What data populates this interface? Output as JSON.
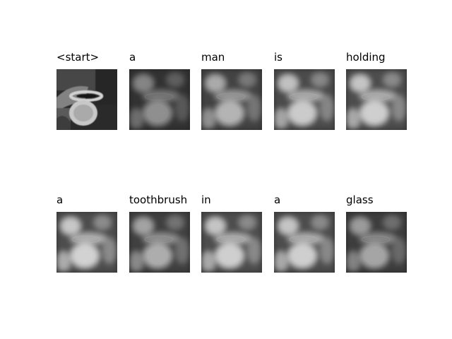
{
  "figure": {
    "rows": [
      {
        "panels": [
          {
            "word": "<start>",
            "intensity": 0.55,
            "original": true
          },
          {
            "word": "a",
            "intensity": 0.35
          },
          {
            "word": "man",
            "intensity": 0.6
          },
          {
            "word": "is",
            "intensity": 0.75
          },
          {
            "word": "holding",
            "intensity": 0.78
          }
        ]
      },
      {
        "panels": [
          {
            "word": "a",
            "intensity": 0.8
          },
          {
            "word": "toothbrush",
            "intensity": 0.55
          },
          {
            "word": "in",
            "intensity": 0.78
          },
          {
            "word": "a",
            "intensity": 0.78
          },
          {
            "word": "glass",
            "intensity": 0.5
          }
        ]
      }
    ]
  }
}
